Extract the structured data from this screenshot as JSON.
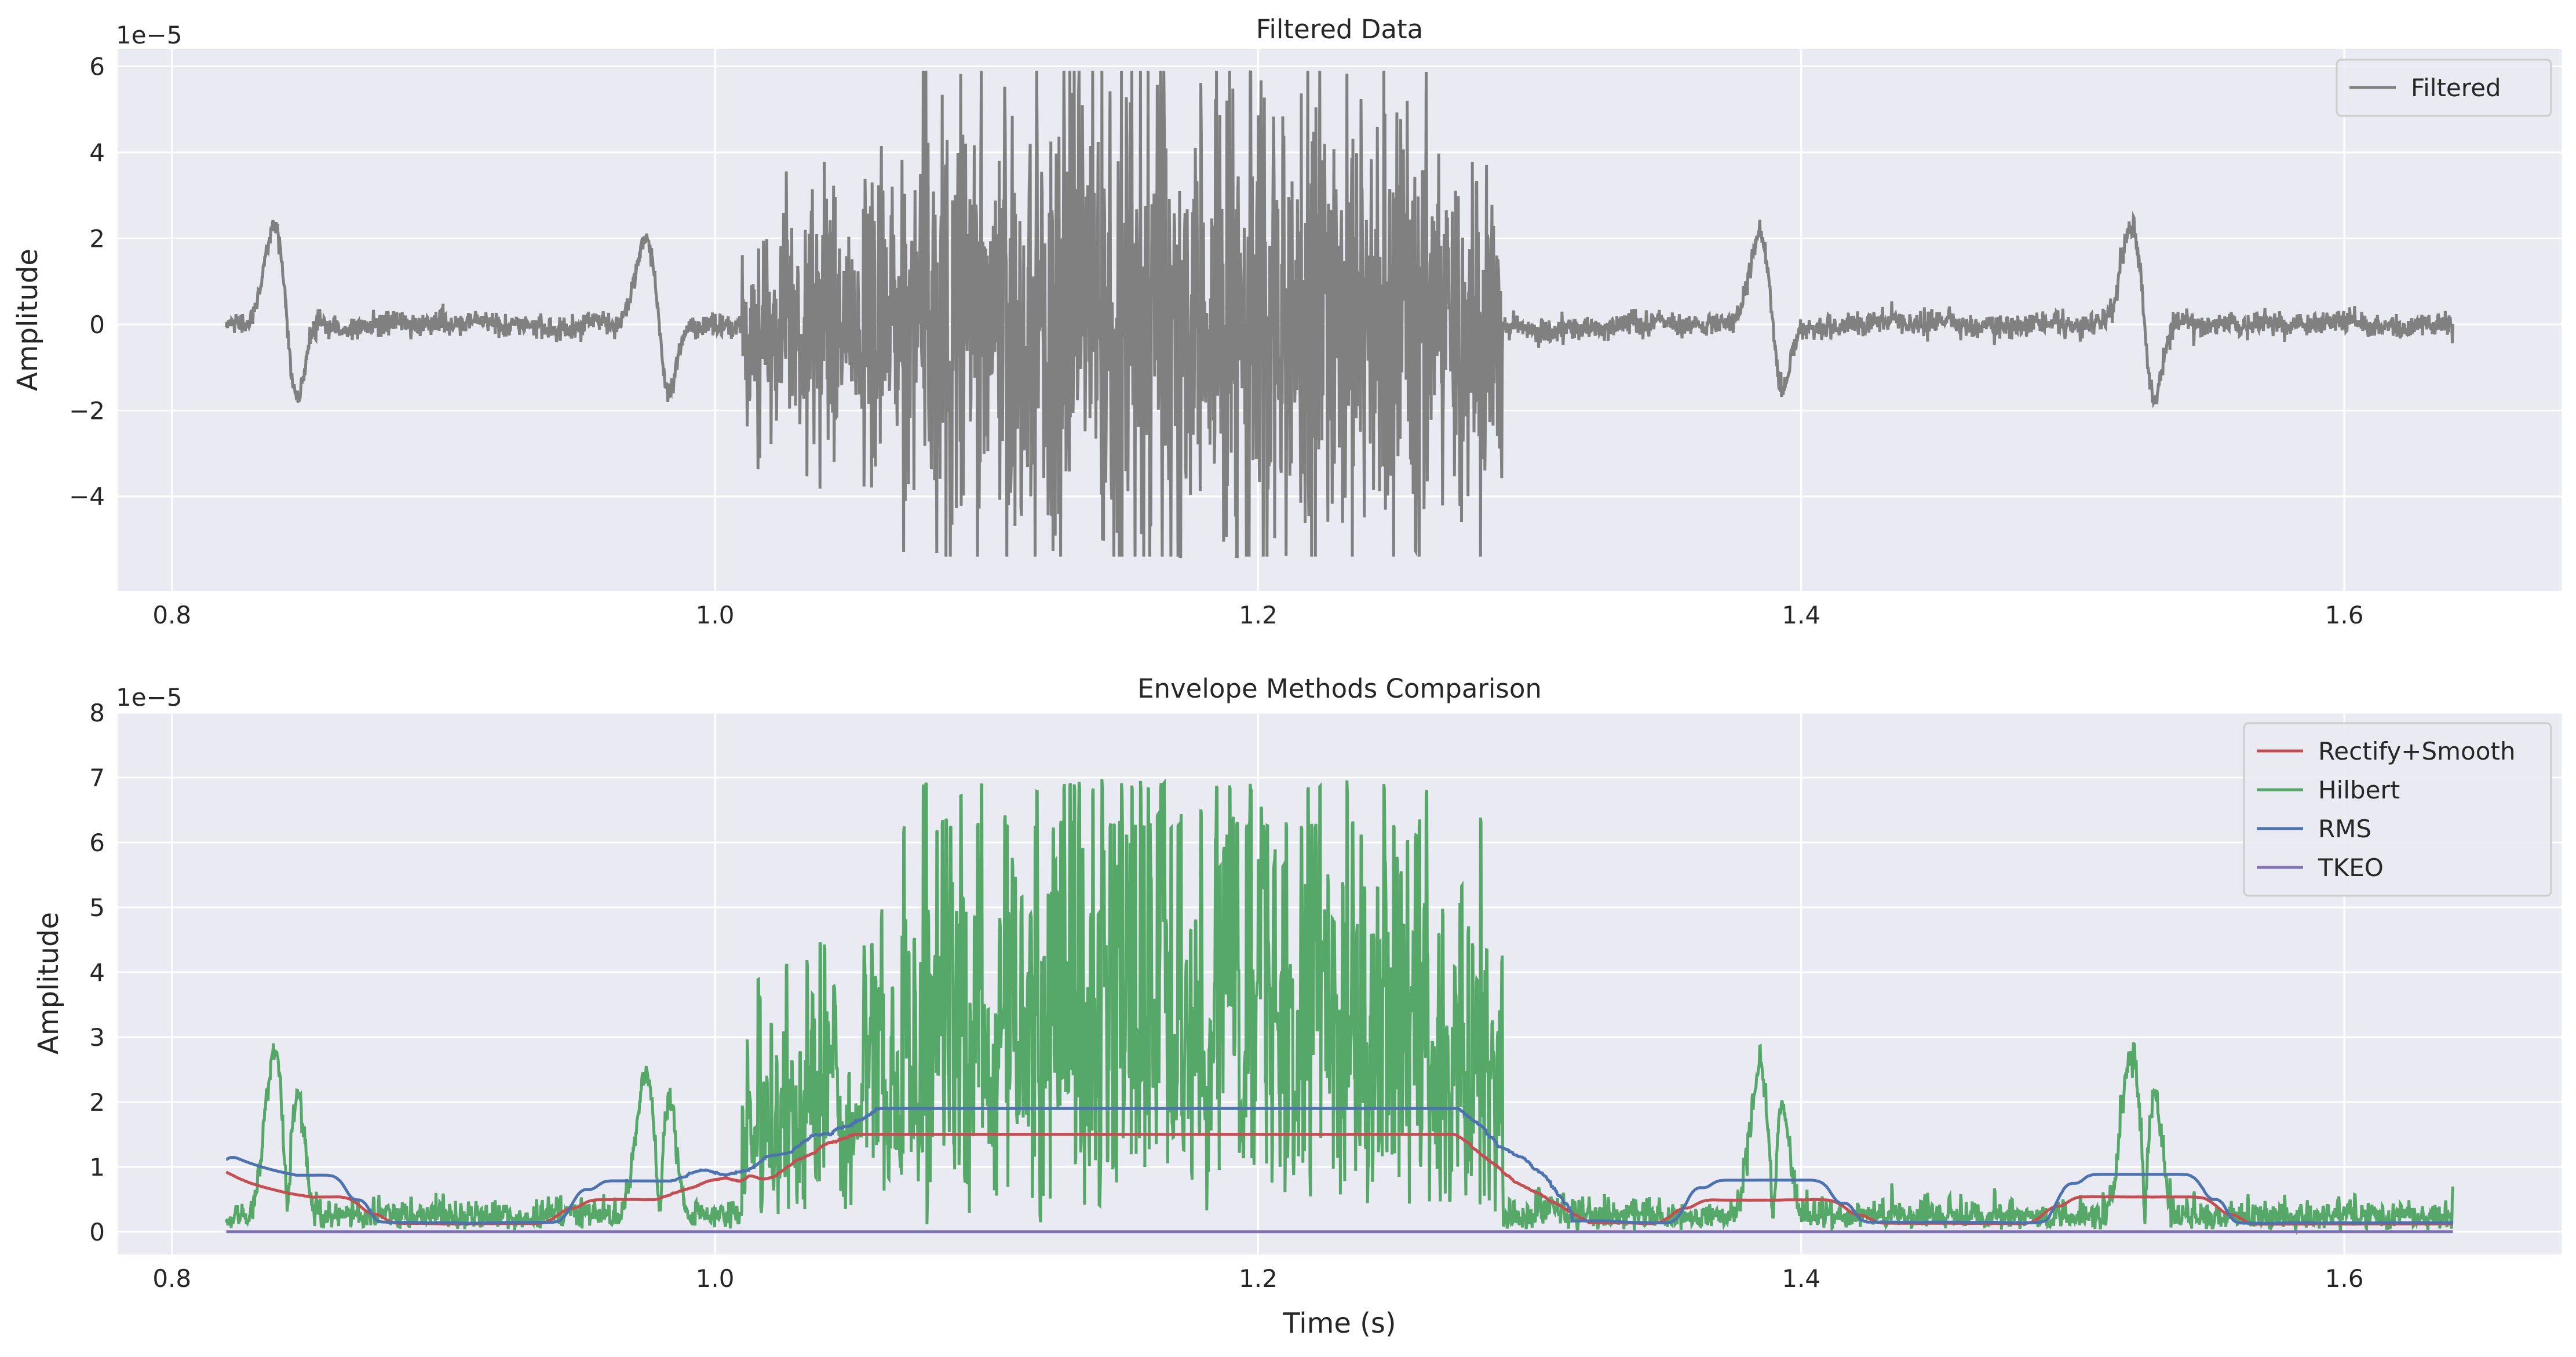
{
  "chart_data": [
    {
      "type": "line",
      "title": "Filtered Data",
      "xlabel": "",
      "ylabel": "Amplitude",
      "y_offset_label": "1e−5",
      "xlim": [
        0.78,
        1.68
      ],
      "ylim": [
        -6.2,
        6.4
      ],
      "x_ticks": [
        "0.8",
        "1.0",
        "1.2",
        "1.4",
        "1.6"
      ],
      "y_ticks": [
        "−4",
        "−2",
        "0",
        "2",
        "4",
        "6"
      ],
      "grid": true,
      "legend_position": "top-right",
      "x_range": [
        0.82,
        1.64
      ],
      "series": [
        {
          "name": "Filtered",
          "color": "#808080",
          "components": {
            "baseline_noise": 0.25,
            "burst": {
              "start": 1.01,
              "end": 1.29,
              "peak_center": 1.17,
              "peak_amplitude": 3.2
            },
            "spikes": [
              {
                "x": 0.838,
                "amplitude": 2.35
              },
              {
                "x": 0.975,
                "amplitude": 2.2
              },
              {
                "x": 1.385,
                "amplitude": 2.1
              },
              {
                "x": 1.522,
                "amplitude": 2.35
              }
            ],
            "extremes": {
              "max": 5.9,
              "min": -5.4
            }
          }
        }
      ]
    },
    {
      "type": "line",
      "title": "Envelope Methods Comparison",
      "xlabel": "Time (s)",
      "ylabel": "Amplitude",
      "y_offset_label": "1e−5",
      "xlim": [
        0.78,
        1.68
      ],
      "ylim": [
        -0.35,
        8.0
      ],
      "x_ticks": [
        "0.8",
        "1.0",
        "1.2",
        "1.4",
        "1.6"
      ],
      "y_ticks": [
        "0",
        "1",
        "2",
        "3",
        "4",
        "5",
        "6",
        "7",
        "8"
      ],
      "grid": true,
      "legend_position": "top-right",
      "x_range": [
        0.82,
        1.64
      ],
      "series": [
        {
          "name": "Rectify+Smooth",
          "color": "#c44e52",
          "peak": 1.5,
          "baseline": 0.25
        },
        {
          "name": "Hilbert",
          "color": "#55a868",
          "peak": 7.6,
          "baseline": 0.3
        },
        {
          "name": "RMS",
          "color": "#4c72b0",
          "peak": 1.9,
          "baseline": 0.25
        },
        {
          "name": "TKEO",
          "color": "#8172b3",
          "peak": 0.0,
          "baseline": 0.0
        }
      ]
    }
  ]
}
